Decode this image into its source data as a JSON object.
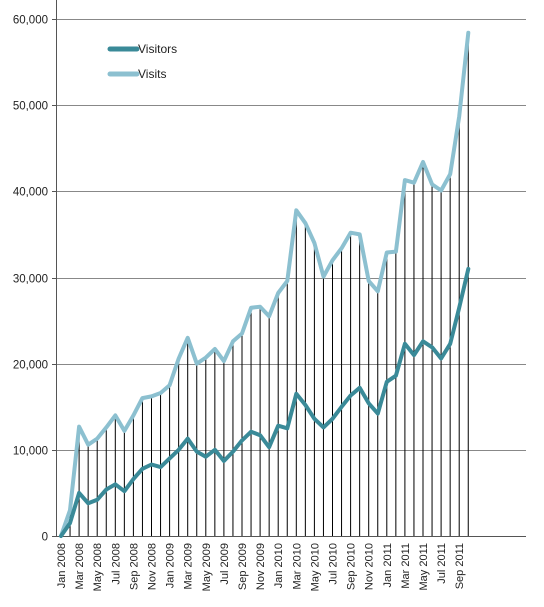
{
  "chart_data": {
    "type": "line",
    "title": "",
    "xlabel": "",
    "ylabel": "",
    "ylim": [
      0,
      60000
    ],
    "yticks": [
      0,
      10000,
      20000,
      30000,
      40000,
      50000,
      60000
    ],
    "ytick_labels": [
      "0",
      "10,000",
      "20,000",
      "30,000",
      "40,000",
      "50,000",
      "60,000"
    ],
    "grid": "horizontal gridlines",
    "legend_position": "top-left",
    "drop_lines": true,
    "colors": {
      "Visitors": "#3a8a98",
      "Visits": "#8cc0d0",
      "grid": "#888888",
      "drop_line": "#000000"
    },
    "x_labels_shown": [
      "Jan 2008",
      "Mar 2008",
      "May 2008",
      "Jul 2008",
      "Sep 2008",
      "Nov 2008",
      "Jan 2009",
      "Mar 2009",
      "May 2009",
      "Jul 2009",
      "Sep 2009",
      "Nov 2009",
      "Jan 2010",
      "Mar 2010",
      "May 2010",
      "Jul 2010",
      "Sep 2010",
      "Nov 2010",
      "Jan 2011",
      "Mar 2011",
      "May 2011",
      "Jul 2011",
      "Sep 2011"
    ],
    "x": [
      "Jan 2008",
      "Feb 2008",
      "Mar 2008",
      "Apr 2008",
      "May 2008",
      "Jun 2008",
      "Jul 2008",
      "Aug 2008",
      "Sep 2008",
      "Oct 2008",
      "Nov 2008",
      "Dec 2008",
      "Jan 2009",
      "Feb 2009",
      "Mar 2009",
      "Apr 2009",
      "May 2009",
      "Jun 2009",
      "Jul 2009",
      "Aug 2009",
      "Sep 2009",
      "Oct 2009",
      "Nov 2009",
      "Dec 2009",
      "Jan 2010",
      "Feb 2010",
      "Mar 2010",
      "Apr 2010",
      "May 2010",
      "Jun 2010",
      "Jul 2010",
      "Aug 2010",
      "Sep 2010",
      "Oct 2010",
      "Nov 2010",
      "Dec 2010",
      "Jan 2011",
      "Feb 2011",
      "Mar 2011",
      "Apr 2011",
      "May 2011",
      "Jun 2011",
      "Jul 2011",
      "Aug 2011",
      "Sep 2011",
      "Oct 2011"
    ],
    "series": [
      {
        "name": "Visitors",
        "values": [
          0,
          1500,
          5000,
          3800,
          4200,
          5400,
          6000,
          5200,
          6600,
          7800,
          8300,
          8000,
          9000,
          10000,
          11300,
          9800,
          9200,
          10000,
          8700,
          9800,
          11100,
          12100,
          11700,
          10300,
          12800,
          12500,
          16500,
          15200,
          13600,
          12600,
          13600,
          15000,
          16300,
          17200,
          15400,
          14200,
          17900,
          18600,
          22300,
          21000,
          22600,
          21900,
          20600,
          22300,
          26500,
          31000
        ]
      },
      {
        "name": "Visits",
        "values": [
          0,
          3000,
          12700,
          10600,
          11300,
          12600,
          14000,
          12200,
          14000,
          16000,
          16200,
          16600,
          17500,
          20600,
          23000,
          20000,
          20700,
          21700,
          20300,
          22600,
          23500,
          26500,
          26600,
          25500,
          28200,
          29600,
          37800,
          36300,
          34000,
          30100,
          32000,
          33400,
          35200,
          35000,
          29600,
          28400,
          32900,
          33000,
          41300,
          41000,
          43400,
          40800,
          40100,
          42000,
          48700,
          58400
        ]
      }
    ]
  }
}
